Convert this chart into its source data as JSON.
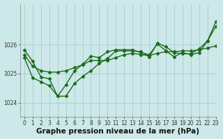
{
  "title": "Graphe pression niveau de la mer (hPa)",
  "bg_color": "#cce8e8",
  "grid_color": "#aacccc",
  "line_color": "#1a6b1a",
  "xlim": [
    -0.5,
    23
  ],
  "ylim": [
    1023.5,
    1027.4
  ],
  "yticks": [
    1024,
    1025,
    1026
  ],
  "xticks": [
    0,
    1,
    2,
    3,
    4,
    5,
    6,
    7,
    8,
    9,
    10,
    11,
    12,
    13,
    14,
    15,
    16,
    17,
    18,
    19,
    20,
    21,
    22,
    23
  ],
  "series1": [
    1025.65,
    1025.25,
    1025.1,
    1025.05,
    1025.05,
    1025.1,
    1025.2,
    1025.3,
    1025.45,
    1025.45,
    1025.45,
    1025.55,
    1025.65,
    1025.7,
    1025.65,
    1025.62,
    1025.7,
    1025.75,
    1025.75,
    1025.78,
    1025.78,
    1025.82,
    1025.88,
    1025.95
  ],
  "series2": [
    1025.55,
    1024.85,
    1024.72,
    1024.58,
    1024.22,
    1024.22,
    1024.65,
    1024.9,
    1025.1,
    1025.35,
    1025.52,
    1025.78,
    1025.78,
    1025.78,
    1025.75,
    1025.58,
    1026.05,
    1025.92,
    1025.72,
    1025.68,
    1025.68,
    1025.85,
    1026.12,
    1026.62
  ],
  "series3": [
    1025.82,
    1025.42,
    1024.88,
    1024.82,
    1024.22,
    1024.62,
    1025.08,
    1025.32,
    1025.6,
    1025.55,
    1025.75,
    1025.82,
    1025.82,
    1025.82,
    1025.72,
    1025.65,
    1026.02,
    1025.78,
    1025.58,
    1025.72,
    1025.65,
    1025.72,
    1026.12,
    1026.78
  ],
  "marker": "D",
  "markersize": 2.5,
  "linewidth": 1.0,
  "title_fontsize": 7.5,
  "tick_fontsize": 5.5
}
